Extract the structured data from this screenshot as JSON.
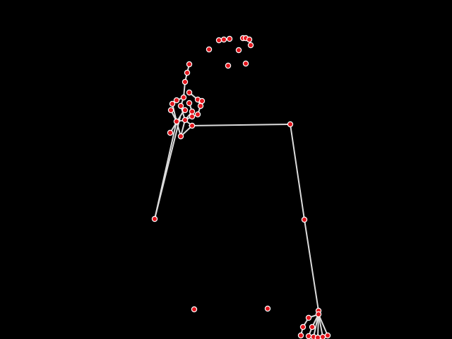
{
  "scene": {
    "description_label": "pose-skeleton-overlay",
    "background_color": "#000000",
    "bone_color": "#dcdcdc",
    "joint_fill_color": "#e3151c",
    "joint_stroke_color": "#ffffff"
  }
}
